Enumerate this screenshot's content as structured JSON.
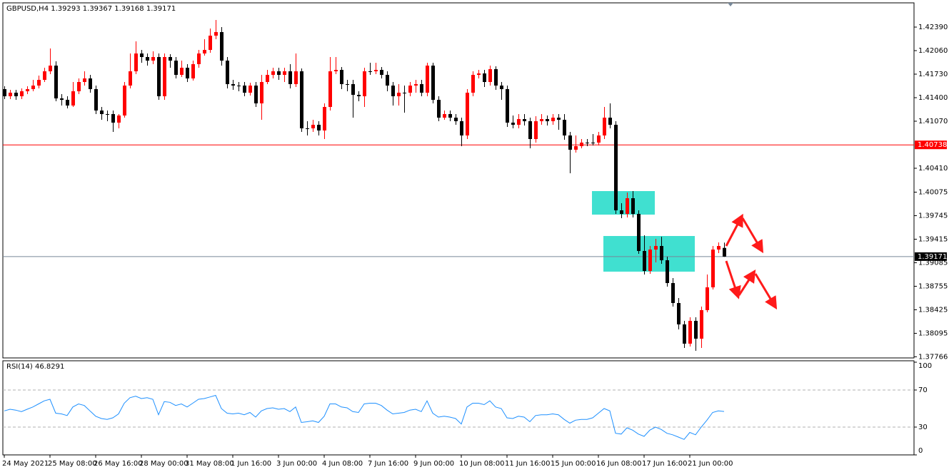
{
  "chart_data": [
    {
      "type": "candlestick",
      "title": "GBPUSD,H4  1.39293 1.39367 1.39168 1.39171",
      "ylim": [
        1.3775,
        1.4273
      ],
      "yticks": [
        {
          "value": 1.4239,
          "label": "1.42390"
        },
        {
          "value": 1.4206,
          "label": "1.42060"
        },
        {
          "value": 1.4173,
          "label": "1.41730"
        },
        {
          "value": 1.414,
          "label": "1.41400"
        },
        {
          "value": 1.4107,
          "label": "1.41070"
        },
        {
          "value": 1.4041,
          "label": "1.40410"
        },
        1.40075,
        1.39745,
        1.39415,
        1.39085,
        1.38755,
        1.38425,
        1.38095,
        1.37766
      ],
      "up_color": "#ff0000",
      "down_color": "#000000",
      "lines": [
        {
          "value": 1.40738,
          "color": "#ff0000"
        },
        {
          "value": 1.39171,
          "color": "#778899"
        }
      ],
      "categories": [
        "24 May 2021",
        null,
        null,
        null,
        null,
        null,
        null,
        null,
        "25 May 08:00",
        null,
        null,
        null,
        null,
        null,
        null,
        null,
        "26 May 16:00",
        null,
        null,
        null,
        null,
        null,
        null,
        null,
        "28 May 00:00",
        null,
        null,
        null,
        null,
        null,
        null,
        null,
        "31 May 08:00",
        null,
        null,
        null,
        null,
        null,
        null,
        null,
        "1 Jun 16:00",
        null,
        null,
        null,
        null,
        null,
        null,
        null,
        "3 Jun 00:00",
        null,
        null,
        null,
        null,
        null,
        null,
        null,
        "4 Jun 08:00",
        null,
        null,
        null,
        null,
        null,
        null,
        null,
        "7 Jun 16:00",
        null,
        null,
        null,
        null,
        null,
        null,
        null,
        "9 Jun 00:00",
        null,
        null,
        null,
        null,
        null,
        null,
        null,
        "10 Jun 08:00",
        null,
        null,
        null,
        null,
        null,
        null,
        null,
        "11 Jun 16:00",
        null,
        null,
        null,
        null,
        null,
        null,
        null,
        "15 Jun 00:00",
        null,
        null,
        null,
        null,
        null,
        null,
        null,
        "16 Jun 08:00",
        null,
        null,
        null,
        null,
        null,
        null,
        null,
        "17 Jun 16:00",
        null,
        null,
        null,
        null,
        null,
        null,
        null,
        "21 Jun 00:00",
        null,
        null,
        null,
        null,
        null,
        null
      ],
      "ohlc": [
        [
          1.4152,
          1.4156,
          1.4138,
          1.4142
        ],
        [
          1.4142,
          1.4151,
          1.4138,
          1.4147
        ],
        [
          1.4147,
          1.4151,
          1.4137,
          1.4142
        ],
        [
          1.4142,
          1.4153,
          1.4138,
          1.4149
        ],
        [
          1.4149,
          1.4156,
          1.4145,
          1.4152
        ],
        [
          1.4152,
          1.4165,
          1.4149,
          1.4157
        ],
        [
          1.4157,
          1.4171,
          1.4153,
          1.4165
        ],
        [
          1.4165,
          1.4182,
          1.4162,
          1.4177
        ],
        [
          1.4177,
          1.4209,
          1.4173,
          1.4185
        ],
        [
          1.4185,
          1.4191,
          1.4135,
          1.4139
        ],
        [
          1.4139,
          1.4145,
          1.4129,
          1.4137
        ],
        [
          1.4137,
          1.4142,
          1.4125,
          1.4129
        ],
        [
          1.4129,
          1.4162,
          1.4127,
          1.4149
        ],
        [
          1.4149,
          1.4167,
          1.4145,
          1.4162
        ],
        [
          1.4162,
          1.4177,
          1.4157,
          1.4167
        ],
        [
          1.4167,
          1.4172,
          1.4147,
          1.4152
        ],
        [
          1.4152,
          1.4157,
          1.4117,
          1.4122
        ],
        [
          1.4122,
          1.4127,
          1.4109,
          1.4117
        ],
        [
          1.4117,
          1.4122,
          1.4107,
          1.4117
        ],
        [
          1.4117,
          1.4122,
          1.4092,
          1.4105
        ],
        [
          1.4105,
          1.4117,
          1.4097,
          1.4115
        ],
        [
          1.4115,
          1.4162,
          1.4112,
          1.4157
        ],
        [
          1.4157,
          1.4202,
          1.4153,
          1.4177
        ],
        [
          1.4177,
          1.4219,
          1.4173,
          1.4202
        ],
        [
          1.4202,
          1.4207,
          1.4189,
          1.4197
        ],
        [
          1.4197,
          1.4202,
          1.4185,
          1.4192
        ],
        [
          1.4192,
          1.4205,
          1.4187,
          1.4197
        ],
        [
          1.4197,
          1.4202,
          1.4137,
          1.4142
        ],
        [
          1.4142,
          1.4202,
          1.4137,
          1.4197
        ],
        [
          1.4197,
          1.4201,
          1.4182,
          1.4192
        ],
        [
          1.4192,
          1.4197,
          1.4167,
          1.4172
        ],
        [
          1.4172,
          1.4192,
          1.4169,
          1.4182
        ],
        [
          1.4182,
          1.4187,
          1.4162,
          1.4167
        ],
        [
          1.4167,
          1.4192,
          1.4164,
          1.4187
        ],
        [
          1.4187,
          1.4207,
          1.4182,
          1.4202
        ],
        [
          1.4202,
          1.4222,
          1.4199,
          1.4207
        ],
        [
          1.4207,
          1.4237,
          1.4203,
          1.4227
        ],
        [
          1.4227,
          1.4249,
          1.4222,
          1.4232
        ],
        [
          1.4232,
          1.4239,
          1.4185,
          1.4192
        ],
        [
          1.4192,
          1.4197,
          1.4153,
          1.4159
        ],
        [
          1.4159,
          1.4165,
          1.4151,
          1.4157
        ],
        [
          1.4157,
          1.4162,
          1.4149,
          1.4157
        ],
        [
          1.4157,
          1.4162,
          1.4142,
          1.4147
        ],
        [
          1.4147,
          1.4161,
          1.4143,
          1.4157
        ],
        [
          1.4157,
          1.4162,
          1.4127,
          1.4132
        ],
        [
          1.4132,
          1.4172,
          1.4109,
          1.4162
        ],
        [
          1.4162,
          1.4179,
          1.4159,
          1.4172
        ],
        [
          1.4172,
          1.4182,
          1.4167,
          1.4177
        ],
        [
          1.4177,
          1.4182,
          1.4165,
          1.4172
        ],
        [
          1.4172,
          1.4182,
          1.4162,
          1.4177
        ],
        [
          1.4177,
          1.4187,
          1.4153,
          1.4159
        ],
        [
          1.4159,
          1.4202,
          1.4155,
          1.4177
        ],
        [
          1.4177,
          1.4181,
          1.4092,
          1.4097
        ],
        [
          1.4097,
          1.4107,
          1.4087,
          1.4097
        ],
        [
          1.4097,
          1.4109,
          1.4092,
          1.4102
        ],
        [
          1.4102,
          1.4107,
          1.4087,
          1.4094
        ],
        [
          1.4094,
          1.4132,
          1.4082,
          1.4127
        ],
        [
          1.4127,
          1.4197,
          1.4122,
          1.4177
        ],
        [
          1.4177,
          1.4197,
          1.4173,
          1.4179
        ],
        [
          1.4179,
          1.4183,
          1.4152,
          1.4159
        ],
        [
          1.4159,
          1.4165,
          1.4149,
          1.4159
        ],
        [
          1.4159,
          1.4165,
          1.4112,
          1.4144
        ],
        [
          1.4144,
          1.4149,
          1.4135,
          1.4142
        ],
        [
          1.4142,
          1.4182,
          1.4127,
          1.4177
        ],
        [
          1.4177,
          1.4189,
          1.4172,
          1.4177
        ],
        [
          1.4177,
          1.4189,
          1.4173,
          1.4179
        ],
        [
          1.4179,
          1.4183,
          1.4167,
          1.4172
        ],
        [
          1.4172,
          1.4177,
          1.4149,
          1.4157
        ],
        [
          1.4157,
          1.4162,
          1.4129,
          1.4142
        ],
        [
          1.4142,
          1.4159,
          1.4129,
          1.4147
        ],
        [
          1.4147,
          1.4157,
          1.4119,
          1.4147
        ],
        [
          1.4147,
          1.4162,
          1.4142,
          1.4157
        ],
        [
          1.4157,
          1.4165,
          1.4147,
          1.4159
        ],
        [
          1.4159,
          1.4165,
          1.4142,
          1.4147
        ],
        [
          1.4147,
          1.4189,
          1.4142,
          1.4185
        ],
        [
          1.4185,
          1.4189,
          1.4132,
          1.4137
        ],
        [
          1.4137,
          1.4142,
          1.4107,
          1.4112
        ],
        [
          1.4112,
          1.4122,
          1.4109,
          1.4117
        ],
        [
          1.4117,
          1.4122,
          1.4107,
          1.4112
        ],
        [
          1.4112,
          1.4117,
          1.4102,
          1.4107
        ],
        [
          1.4107,
          1.4112,
          1.4072,
          1.4087
        ],
        [
          1.4087,
          1.4152,
          1.4082,
          1.4147
        ],
        [
          1.4147,
          1.4177,
          1.4142,
          1.4172
        ],
        [
          1.4172,
          1.4179,
          1.4167,
          1.4174
        ],
        [
          1.4174,
          1.4179,
          1.4155,
          1.4162
        ],
        [
          1.4162,
          1.4185,
          1.4157,
          1.418
        ],
        [
          1.418,
          1.4184,
          1.4151,
          1.4157
        ],
        [
          1.4157,
          1.4162,
          1.4137,
          1.4152
        ],
        [
          1.4152,
          1.4157,
          1.4099,
          1.4105
        ],
        [
          1.4105,
          1.4115,
          1.4097,
          1.4102
        ],
        [
          1.4102,
          1.4117,
          1.4097,
          1.411
        ],
        [
          1.411,
          1.4117,
          1.4101,
          1.4107
        ],
        [
          1.4107,
          1.4112,
          1.4069,
          1.4082
        ],
        [
          1.4082,
          1.4114,
          1.4077,
          1.4107
        ],
        [
          1.4107,
          1.4117,
          1.4102,
          1.411
        ],
        [
          1.411,
          1.4115,
          1.4101,
          1.4107
        ],
        [
          1.4107,
          1.4117,
          1.4102,
          1.4112
        ],
        [
          1.4112,
          1.4117,
          1.4095,
          1.4109
        ],
        [
          1.4109,
          1.4117,
          1.4081,
          1.4087
        ],
        [
          1.4087,
          1.4092,
          1.4034,
          1.4067
        ],
        [
          1.4067,
          1.4087,
          1.4063,
          1.4072
        ],
        [
          1.4072,
          1.4082,
          1.4069,
          1.4077
        ],
        [
          1.4077,
          1.4082,
          1.4072,
          1.4077
        ],
        [
          1.4077,
          1.4089,
          1.4073,
          1.4077
        ],
        [
          1.4077,
          1.4092,
          1.4073,
          1.4087
        ],
        [
          1.4087,
          1.4127,
          1.4082,
          1.4112
        ],
        [
          1.4112,
          1.4132,
          1.4097,
          1.4102
        ],
        [
          1.4102,
          1.4107,
          1.3977,
          1.3982
        ],
        [
          1.3982,
          1.3992,
          1.3971,
          1.3977
        ],
        [
          1.3977,
          1.4007,
          1.3972,
          1.3999
        ],
        [
          1.3999,
          1.4009,
          1.3972,
          1.3977
        ],
        [
          1.3977,
          1.3982,
          1.3921,
          1.3925
        ],
        [
          1.3925,
          1.3947,
          1.3892,
          1.3897
        ],
        [
          1.3897,
          1.3932,
          1.3893,
          1.3927
        ],
        [
          1.3927,
          1.3942,
          1.3909,
          1.3932
        ],
        [
          1.3932,
          1.3945,
          1.3907,
          1.3912
        ],
        [
          1.3912,
          1.3917,
          1.3875,
          1.388
        ],
        [
          1.388,
          1.3887,
          1.3847,
          1.3852
        ],
        [
          1.3852,
          1.3859,
          1.3815,
          1.3822
        ],
        [
          1.3822,
          1.3827,
          1.3789,
          1.3795
        ],
        [
          1.3795,
          1.3832,
          1.3791,
          1.3827
        ],
        [
          1.3827,
          1.3832,
          1.3785,
          1.3802
        ],
        [
          1.3802,
          1.3847,
          1.3789,
          1.3842
        ],
        [
          1.3842,
          1.3892,
          1.3839,
          1.3874
        ],
        [
          1.3874,
          1.3932,
          1.3871,
          1.3927
        ],
        [
          1.3927,
          1.3937,
          1.3922,
          1.3932
        ],
        [
          1.39293,
          1.39367,
          1.39168,
          1.39171
        ]
      ]
    },
    {
      "type": "line",
      "title": "RSI(14) 46.8291",
      "color": "#1e90ff",
      "ylim": [
        0,
        100
      ],
      "yticks": [
        0,
        30,
        70,
        100
      ],
      "levels": [
        30,
        70
      ],
      "values": [
        47.5,
        49.2,
        48.3,
        46.7,
        49.2,
        51.7,
        55,
        58.3,
        60,
        45,
        44.2,
        42.5,
        51.7,
        55,
        53.3,
        47.5,
        41.7,
        39.2,
        38.3,
        40,
        44.2,
        55.8,
        61.7,
        63.3,
        60.8,
        61.7,
        60,
        43.3,
        57.5,
        56.7,
        53.3,
        55,
        51.7,
        55.8,
        60,
        60.8,
        62.5,
        64.2,
        50,
        45,
        44.2,
        45,
        43.3,
        45.8,
        40.8,
        47.5,
        50,
        50.8,
        49.2,
        50,
        46.7,
        51.7,
        35,
        35.8,
        36.7,
        35,
        41.7,
        55,
        55,
        51.7,
        50.8,
        46.7,
        45.8,
        55,
        55.8,
        55.8,
        53.3,
        48.3,
        44.2,
        45,
        45.8,
        48.3,
        49.2,
        46.7,
        58.3,
        45,
        40.8,
        41.7,
        40.8,
        39.2,
        33.3,
        51.7,
        55.8,
        55.8,
        54.2,
        58.3,
        51.7,
        50,
        40,
        39.2,
        41.7,
        40.8,
        35.8,
        42.5,
        43.3,
        43.3,
        44.2,
        43.3,
        38.3,
        34.2,
        37.5,
        38.3,
        38.3,
        40,
        45,
        50,
        47.5,
        23.3,
        22.5,
        29.2,
        26.7,
        22.5,
        20,
        26.7,
        30,
        27.5,
        23.3,
        21.7,
        19.2,
        16.7,
        24.2,
        21.7,
        30,
        37.5,
        45.8,
        47.5,
        46.8291
      ]
    }
  ]
}
